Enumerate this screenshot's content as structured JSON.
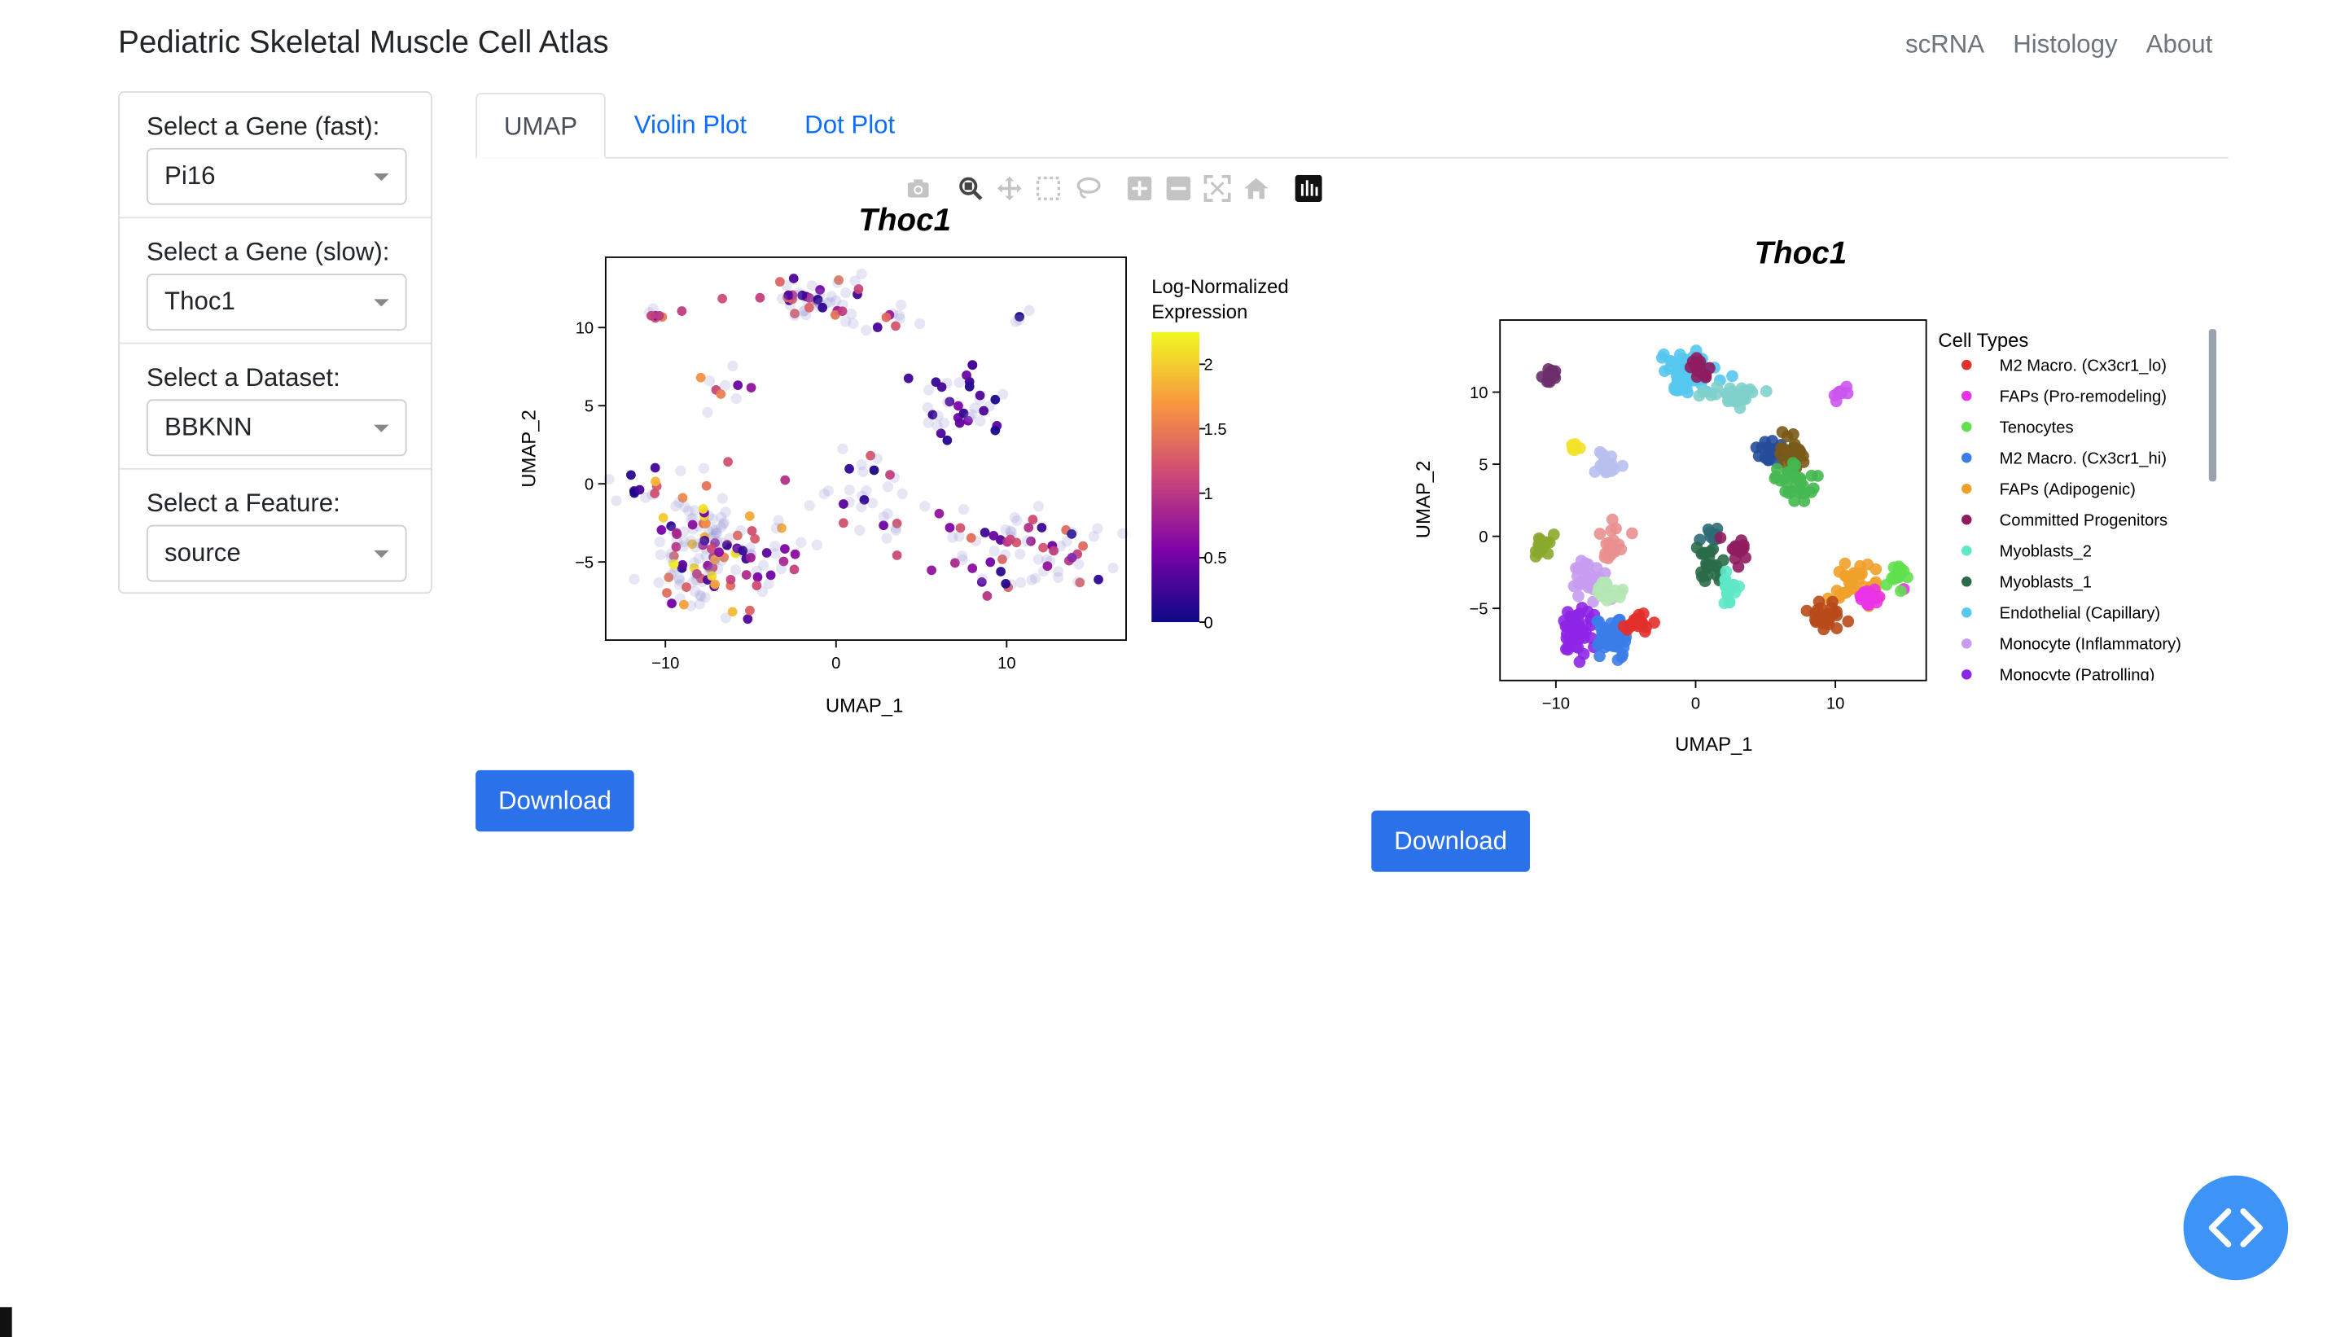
{
  "header": {
    "title": "Pediatric Skeletal Muscle Cell Atlas",
    "nav": [
      "scRNA",
      "Histology",
      "About"
    ]
  },
  "sidebar": {
    "controls": [
      {
        "label": "Select a Gene (fast):",
        "value": "Pi16"
      },
      {
        "label": "Select a Gene (slow):",
        "value": "Thoc1"
      },
      {
        "label": "Select a Dataset:",
        "value": "BBKNN"
      },
      {
        "label": "Select a Feature:",
        "value": "source"
      }
    ]
  },
  "tabs": [
    "UMAP",
    "Violin Plot",
    "Dot Plot"
  ],
  "modebar": [
    "camera-icon",
    "zoom-icon",
    "pan-icon",
    "box-select-icon",
    "lasso-icon",
    "zoom-in-icon",
    "zoom-out-icon",
    "autoscale-icon",
    "reset-axes-icon",
    "plotly-logo-icon"
  ],
  "buttons": {
    "download": "Download"
  },
  "colors": {
    "accent": "#2b72ea",
    "fab": "#3d94f6",
    "tab_link": "#0d6efd"
  },
  "chart_data": [
    {
      "type": "scatter",
      "title": "Thoc1",
      "xlabel": "UMAP_1",
      "ylabel": "UMAP_2",
      "xlim": [
        -13.5,
        17
      ],
      "ylim": [
        -10,
        14.5
      ],
      "xticks": [
        "−10",
        "0",
        "10"
      ],
      "yticks": [
        "−5",
        "0",
        "5",
        "10"
      ],
      "colorbar": {
        "title": [
          "Log-Normalized",
          "Expression"
        ],
        "range": [
          0,
          2.25
        ],
        "ticks": [
          "0",
          "0.5",
          "1",
          "1.5",
          "2"
        ],
        "colorscale": [
          "#0d0887",
          "#7e03a8",
          "#cc4778",
          "#f89540",
          "#f0f921"
        ]
      },
      "clusters": [
        {
          "cx": -10.6,
          "cy": 10.9,
          "sx": 0.4,
          "sy": 0.4,
          "n": 8,
          "expr": [
            0.4,
            1.6
          ]
        },
        {
          "cx": -1.2,
          "cy": 11.7,
          "sx": 2.0,
          "sy": 0.7,
          "n": 55,
          "expr": [
            0,
            1.5
          ]
        },
        {
          "cx": 3.5,
          "cy": 10.6,
          "sx": 1.0,
          "sy": 0.4,
          "n": 8,
          "expr": [
            0,
            1.5
          ]
        },
        {
          "cx": 11.2,
          "cy": 10.4,
          "sx": 0.7,
          "sy": 0.3,
          "n": 4,
          "expr": [
            0,
            0.1
          ]
        },
        {
          "cx": -7.0,
          "cy": 5.7,
          "sx": 1.1,
          "sy": 0.9,
          "n": 10,
          "expr": [
            0,
            2.2
          ]
        },
        {
          "cx": 7.6,
          "cy": 5.1,
          "sx": 1.4,
          "sy": 1.4,
          "n": 38,
          "expr": [
            0,
            0.6
          ]
        },
        {
          "cx": -11.5,
          "cy": -0.4,
          "sx": 0.9,
          "sy": 0.6,
          "n": 10,
          "expr": [
            0,
            0.3
          ]
        },
        {
          "cx": -7.8,
          "cy": -4.6,
          "sx": 1.5,
          "sy": 2.1,
          "n": 140,
          "expr": [
            0,
            2.2
          ]
        },
        {
          "cx": -4.4,
          "cy": -4.3,
          "sx": 1.3,
          "sy": 1.2,
          "n": 24,
          "expr": [
            0,
            1.3
          ]
        },
        {
          "cx": 2.1,
          "cy": -1.4,
          "sx": 1.6,
          "sy": 1.9,
          "n": 35,
          "expr": [
            0,
            1.4
          ]
        },
        {
          "cx": 11.1,
          "cy": -4.4,
          "sx": 2.3,
          "sy": 1.3,
          "n": 75,
          "expr": [
            0,
            1.5
          ]
        }
      ]
    },
    {
      "type": "scatter",
      "title": "Thoc1",
      "xlabel": "UMAP_1",
      "ylabel": "UMAP_2",
      "xlim": [
        -14,
        16.5
      ],
      "ylim": [
        -10,
        15
      ],
      "xticks": [
        "−10",
        "0",
        "10"
      ],
      "yticks": [
        "−5",
        "0",
        "5",
        "10"
      ],
      "legend": {
        "title": "Cell Types",
        "position": "right",
        "items": [
          {
            "name": "M2 Macro. (Cx3cr1_lo)",
            "color": "#e2302b"
          },
          {
            "name": "FAPs (Pro-remodeling)",
            "color": "#ea33e6"
          },
          {
            "name": "Tenocytes",
            "color": "#62e04e"
          },
          {
            "name": "M2 Macro. (Cx3cr1_hi)",
            "color": "#3b7de9"
          },
          {
            "name": "FAPs (Adipogenic)",
            "color": "#f0a12a"
          },
          {
            "name": "Committed Progenitors",
            "color": "#8e1d5f"
          },
          {
            "name": "Myoblasts_2",
            "color": "#5de9c6"
          },
          {
            "name": "Myoblasts_1",
            "color": "#2a6b49"
          },
          {
            "name": "Endothelial (Capillary)",
            "color": "#55c8ef"
          },
          {
            "name": "Monocyte (Inflammatory)",
            "color": "#c89cf0"
          },
          {
            "name": "Monocyte (Patrolling)",
            "color": "#8e26e6"
          }
        ]
      },
      "clusters": [
        {
          "cx": -10.4,
          "cy": 11.0,
          "sx": 0.3,
          "sy": 0.4,
          "n": 12,
          "color": "#6b2d6b"
        },
        {
          "cx": -0.5,
          "cy": 11.5,
          "sx": 1.2,
          "sy": 0.8,
          "n": 70,
          "color": "#55c8ef"
        },
        {
          "cx": 0.4,
          "cy": 11.6,
          "sx": 0.6,
          "sy": 0.5,
          "n": 15,
          "color": "#8e1d5f"
        },
        {
          "cx": 2.5,
          "cy": 9.7,
          "sx": 1.1,
          "sy": 0.4,
          "n": 30,
          "color": "#7fd0cc"
        },
        {
          "cx": 10.6,
          "cy": 10.1,
          "sx": 0.4,
          "sy": 0.3,
          "n": 8,
          "color": "#cc55ee"
        },
        {
          "cx": -8.6,
          "cy": 6.1,
          "sx": 0.4,
          "sy": 0.2,
          "n": 6,
          "color": "#f2e229"
        },
        {
          "cx": -6.4,
          "cy": 4.8,
          "sx": 0.5,
          "sy": 0.7,
          "n": 18,
          "color": "#b8c0f0"
        },
        {
          "cx": 5.3,
          "cy": 5.6,
          "sx": 0.7,
          "sy": 0.6,
          "n": 22,
          "color": "#264d9a"
        },
        {
          "cx": 7.2,
          "cy": 6.0,
          "sx": 0.6,
          "sy": 0.8,
          "n": 25,
          "color": "#7a5a18"
        },
        {
          "cx": 7.0,
          "cy": 3.8,
          "sx": 0.8,
          "sy": 0.8,
          "n": 30,
          "color": "#45b851"
        },
        {
          "cx": -11.0,
          "cy": -0.7,
          "sx": 0.5,
          "sy": 0.5,
          "n": 14,
          "color": "#8aa82c"
        },
        {
          "cx": -6.2,
          "cy": -1.0,
          "sx": 0.6,
          "sy": 1.0,
          "n": 18,
          "color": "#e9908e"
        },
        {
          "cx": -7.5,
          "cy": -3.1,
          "sx": 1.0,
          "sy": 0.8,
          "n": 30,
          "color": "#c89cf0"
        },
        {
          "cx": -6.3,
          "cy": -3.8,
          "sx": 0.6,
          "sy": 0.6,
          "n": 18,
          "color": "#b5e7b5"
        },
        {
          "cx": -8.5,
          "cy": -6.5,
          "sx": 0.8,
          "sy": 1.0,
          "n": 55,
          "color": "#8e26e6"
        },
        {
          "cx": -6.2,
          "cy": -6.8,
          "sx": 0.8,
          "sy": 0.8,
          "n": 50,
          "color": "#3b7de9"
        },
        {
          "cx": -4.0,
          "cy": -6.0,
          "sx": 0.7,
          "sy": 0.4,
          "n": 22,
          "color": "#e2302b"
        },
        {
          "cx": 1.2,
          "cy": 0.2,
          "sx": 0.4,
          "sy": 0.3,
          "n": 10,
          "color": "#2e6d77"
        },
        {
          "cx": 0.9,
          "cy": -2.0,
          "sx": 0.5,
          "sy": 0.9,
          "n": 20,
          "color": "#2a6b49"
        },
        {
          "cx": 2.9,
          "cy": -1.0,
          "sx": 0.6,
          "sy": 0.7,
          "n": 14,
          "color": "#8e1d5f"
        },
        {
          "cx": 2.4,
          "cy": -3.7,
          "sx": 0.4,
          "sy": 0.8,
          "n": 18,
          "color": "#5de9c6"
        },
        {
          "cx": 11.6,
          "cy": -3.3,
          "sx": 1.1,
          "sy": 0.9,
          "n": 40,
          "color": "#f0a12a"
        },
        {
          "cx": 9.2,
          "cy": -5.6,
          "sx": 0.8,
          "sy": 0.6,
          "n": 30,
          "color": "#b84a1a"
        },
        {
          "cx": 12.4,
          "cy": -4.2,
          "sx": 0.6,
          "sy": 0.5,
          "n": 15,
          "color": "#ea33e6"
        },
        {
          "cx": 14.3,
          "cy": -2.6,
          "sx": 0.4,
          "sy": 0.5,
          "n": 14,
          "color": "#62e04e"
        }
      ]
    }
  ]
}
